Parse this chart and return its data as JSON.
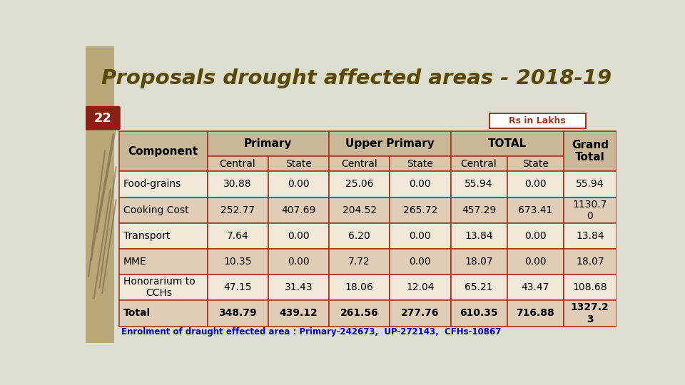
{
  "title": "Proposals drought affected areas - 2018-19",
  "slide_number": "22",
  "rs_label": "Rs in Lakhs",
  "background_color": "#deded0",
  "header_bg": "#c8b898",
  "row_bg_light": "#f0e8d8",
  "row_bg_dark": "#e0cdb8",
  "border_color": "#a03820",
  "title_color": "#5a4800",
  "footer_color": "#0000cc",
  "left_strip_color": "#b8a878",
  "slide_box_color": "#8b2010",
  "rs_box_border": "#a03820",
  "sub_header_bg": "#d8c8a8",
  "rows": [
    [
      "Food-grains",
      "30.88",
      "0.00",
      "25.06",
      "0.00",
      "55.94",
      "0.00",
      "55.94"
    ],
    [
      "Cooking Cost",
      "252.77",
      "407.69",
      "204.52",
      "265.72",
      "457.29",
      "673.41",
      "1130.7\n0"
    ],
    [
      "Transport",
      "7.64",
      "0.00",
      "6.20",
      "0.00",
      "13.84",
      "0.00",
      "13.84"
    ],
    [
      "MME",
      "10.35",
      "0.00",
      "7.72",
      "0.00",
      "18.07",
      "0.00",
      "18.07"
    ],
    [
      "Honorarium to\nCCHs",
      "47.15",
      "31.43",
      "18.06",
      "12.04",
      "65.21",
      "43.47",
      "108.68"
    ],
    [
      "Total",
      "348.79",
      "439.12",
      "261.56",
      "277.76",
      "610.35",
      "716.88",
      "1327.2\n3"
    ]
  ],
  "footer_text": "Enrolment of draught effected area : Primary-242673,  UP-272143,  CFHs-10867"
}
